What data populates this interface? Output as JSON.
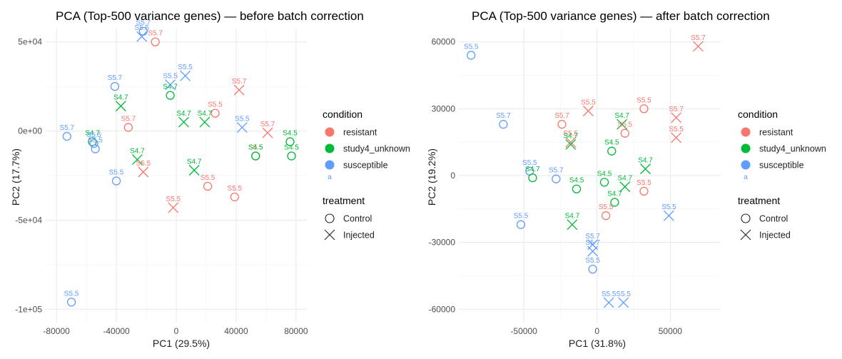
{
  "colors": {
    "resistant": "#F8766D",
    "study4_unknown": "#00BA38",
    "susceptible": "#619CFF"
  },
  "legend": {
    "condition_title": "condition",
    "condition_items": [
      {
        "key": "resistant",
        "label": "resistant"
      },
      {
        "key": "study4_unknown",
        "label": "study4_unknown"
      },
      {
        "key": "susceptible",
        "label": "susceptible"
      }
    ],
    "key_glyph": "a",
    "treatment_title": "treatment",
    "treatment_items": [
      {
        "shape": "circle",
        "label": "Control"
      },
      {
        "shape": "cross",
        "label": "Injected"
      }
    ]
  },
  "chart_data": [
    {
      "type": "scatter",
      "title": "PCA (Top-500 variance genes) — before batch correction",
      "xlabel": "PC1 (29.5%)",
      "ylabel": "PC2 (17.7%)",
      "xlim": [
        -80000,
        80000
      ],
      "ylim": [
        -100000,
        50000
      ],
      "xticks": [
        -80000,
        -40000,
        0,
        40000,
        80000
      ],
      "xtick_labels": [
        "-80000",
        "-40000",
        "0",
        "40000",
        "80000"
      ],
      "yticks": [
        50000,
        0,
        -50000,
        -100000
      ],
      "ytick_labels": [
        "5e+04",
        "0e+00",
        "-5e+04",
        "-1e+05"
      ],
      "grid": true,
      "points": [
        {
          "x": -22000,
          "y": 56000,
          "cond": "susceptible",
          "treat": "Control",
          "label": "S5.7"
        },
        {
          "x": -23000,
          "y": 53000,
          "cond": "susceptible",
          "treat": "Injected",
          "label": "S5.5"
        },
        {
          "x": -14000,
          "y": 50000,
          "cond": "resistant",
          "treat": "Control",
          "label": "S5.7"
        },
        {
          "x": -41000,
          "y": 25000,
          "cond": "susceptible",
          "treat": "Control",
          "label": "S5.7"
        },
        {
          "x": 6000,
          "y": 31000,
          "cond": "susceptible",
          "treat": "Injected",
          "label": "S5.5"
        },
        {
          "x": -4000,
          "y": 26000,
          "cond": "susceptible",
          "treat": "Injected",
          "label": "S5.5"
        },
        {
          "x": -4000,
          "y": 20000,
          "cond": "study4_unknown",
          "treat": "Control",
          "label": "S4.7"
        },
        {
          "x": 42000,
          "y": 23000,
          "cond": "resistant",
          "treat": "Injected",
          "label": "S5.7"
        },
        {
          "x": -37000,
          "y": 14000,
          "cond": "study4_unknown",
          "treat": "Injected",
          "label": "S4.7"
        },
        {
          "x": 26000,
          "y": 10000,
          "cond": "resistant",
          "treat": "Control",
          "label": "S5.5"
        },
        {
          "x": 5000,
          "y": 5000,
          "cond": "study4_unknown",
          "treat": "Injected",
          "label": "S4.7"
        },
        {
          "x": 19000,
          "y": 5000,
          "cond": "study4_unknown",
          "treat": "Injected",
          "label": "S4.7"
        },
        {
          "x": -32000,
          "y": 2000,
          "cond": "resistant",
          "treat": "Control",
          "label": "S5.7"
        },
        {
          "x": 44000,
          "y": 2000,
          "cond": "susceptible",
          "treat": "Injected",
          "label": "S5.5"
        },
        {
          "x": 61000,
          "y": -1000,
          "cond": "resistant",
          "treat": "Injected",
          "label": "S5.7"
        },
        {
          "x": -73000,
          "y": -3000,
          "cond": "susceptible",
          "treat": "Control",
          "label": "S5.7"
        },
        {
          "x": -56000,
          "y": -6000,
          "cond": "study4_unknown",
          "treat": "Control",
          "label": "S4.7"
        },
        {
          "x": -55000,
          "y": -7000,
          "cond": "susceptible",
          "treat": "Control",
          "label": "S5.5"
        },
        {
          "x": -54000,
          "y": -10000,
          "cond": "susceptible",
          "treat": "Control",
          "label": "S5.5"
        },
        {
          "x": 76000,
          "y": -6000,
          "cond": "study4_unknown",
          "treat": "Control",
          "label": "S4.5"
        },
        {
          "x": 53000,
          "y": -14000,
          "cond": "resistant",
          "treat": "Control",
          "label": "S5.5"
        },
        {
          "x": 53000,
          "y": -14000,
          "cond": "study4_unknown",
          "treat": "Control",
          "label": "S4.5"
        },
        {
          "x": 77000,
          "y": -14000,
          "cond": "study4_unknown",
          "treat": "Control",
          "label": "S4.5"
        },
        {
          "x": -26000,
          "y": -16000,
          "cond": "study4_unknown",
          "treat": "Injected",
          "label": "S4.7"
        },
        {
          "x": -22000,
          "y": -23000,
          "cond": "resistant",
          "treat": "Injected",
          "label": "S5.5"
        },
        {
          "x": 12000,
          "y": -22000,
          "cond": "study4_unknown",
          "treat": "Injected",
          "label": "S4.7"
        },
        {
          "x": -40000,
          "y": -28000,
          "cond": "susceptible",
          "treat": "Control",
          "label": "S5.5"
        },
        {
          "x": 21000,
          "y": -31000,
          "cond": "resistant",
          "treat": "Control",
          "label": "S5.5"
        },
        {
          "x": 39000,
          "y": -37000,
          "cond": "resistant",
          "treat": "Control",
          "label": "S5.5"
        },
        {
          "x": -2000,
          "y": -43000,
          "cond": "resistant",
          "treat": "Injected",
          "label": "S5.5"
        },
        {
          "x": -70000,
          "y": -96000,
          "cond": "susceptible",
          "treat": "Control",
          "label": "S5.5"
        }
      ]
    },
    {
      "type": "scatter",
      "title": "PCA (Top-500 variance genes) — after batch correction",
      "xlabel": "PC1 (31.8%)",
      "ylabel": "PC2 (19.2%)",
      "xlim": [
        -87000,
        77000
      ],
      "ylim": [
        -60000,
        60000
      ],
      "xticks": [
        -50000,
        0,
        50000
      ],
      "xtick_labels": [
        "-50000",
        "0",
        "50000"
      ],
      "yticks": [
        60000,
        30000,
        0,
        -30000,
        -60000
      ],
      "ytick_labels": [
        "60000",
        "30000",
        "0",
        "-30000",
        "-60000"
      ],
      "grid": true,
      "points": [
        {
          "x": 69000,
          "y": 58000,
          "cond": "resistant",
          "treat": "Injected",
          "label": "S5.7"
        },
        {
          "x": -86000,
          "y": 54000,
          "cond": "susceptible",
          "treat": "Control",
          "label": "S5.5"
        },
        {
          "x": -6000,
          "y": 29000,
          "cond": "resistant",
          "treat": "Injected",
          "label": "S5.5"
        },
        {
          "x": 32000,
          "y": 30000,
          "cond": "resistant",
          "treat": "Control",
          "label": "S5.5"
        },
        {
          "x": -24000,
          "y": 23000,
          "cond": "resistant",
          "treat": "Control",
          "label": "S5.7"
        },
        {
          "x": 54000,
          "y": 26000,
          "cond": "resistant",
          "treat": "Injected",
          "label": "S5.7"
        },
        {
          "x": -64000,
          "y": 23000,
          "cond": "susceptible",
          "treat": "Control",
          "label": "S5.7"
        },
        {
          "x": 17000,
          "y": 23000,
          "cond": "study4_unknown",
          "treat": "Injected",
          "label": "S4.7"
        },
        {
          "x": 19000,
          "y": 19000,
          "cond": "resistant",
          "treat": "Control",
          "label": "S5.5"
        },
        {
          "x": 54000,
          "y": 17000,
          "cond": "resistant",
          "treat": "Injected",
          "label": "S5.5"
        },
        {
          "x": -18000,
          "y": 15000,
          "cond": "resistant",
          "treat": "Injected",
          "label": "S5.5"
        },
        {
          "x": -18000,
          "y": 14000,
          "cond": "study4_unknown",
          "treat": "Injected",
          "label": "S4.7"
        },
        {
          "x": 10000,
          "y": 11000,
          "cond": "study4_unknown",
          "treat": "Control",
          "label": "S4.5"
        },
        {
          "x": 33000,
          "y": 3000,
          "cond": "study4_unknown",
          "treat": "Injected",
          "label": "S4.7"
        },
        {
          "x": -46000,
          "y": 2000,
          "cond": "susceptible",
          "treat": "Control",
          "label": "S5.5"
        },
        {
          "x": -44000,
          "y": -1000,
          "cond": "study4_unknown",
          "treat": "Control",
          "label": "S4.7"
        },
        {
          "x": -28000,
          "y": -1500,
          "cond": "susceptible",
          "treat": "Control",
          "label": "S5.7"
        },
        {
          "x": -14000,
          "y": -6000,
          "cond": "study4_unknown",
          "treat": "Control",
          "label": "S4.5"
        },
        {
          "x": 5000,
          "y": -3000,
          "cond": "study4_unknown",
          "treat": "Control",
          "label": "S4.5"
        },
        {
          "x": 19000,
          "y": -5000,
          "cond": "study4_unknown",
          "treat": "Injected",
          "label": "S4.7"
        },
        {
          "x": 32000,
          "y": -7000,
          "cond": "resistant",
          "treat": "Control",
          "label": "S5.5"
        },
        {
          "x": 12000,
          "y": -12000,
          "cond": "study4_unknown",
          "treat": "Control",
          "label": "S4.7"
        },
        {
          "x": 6000,
          "y": -18000,
          "cond": "resistant",
          "treat": "Control",
          "label": "S5.5"
        },
        {
          "x": -17000,
          "y": -22000,
          "cond": "study4_unknown",
          "treat": "Injected",
          "label": "S4.7"
        },
        {
          "x": -52000,
          "y": -22000,
          "cond": "susceptible",
          "treat": "Control",
          "label": "S5.5"
        },
        {
          "x": 49000,
          "y": -18000,
          "cond": "susceptible",
          "treat": "Injected",
          "label": "S5.5"
        },
        {
          "x": -3000,
          "y": -31000,
          "cond": "susceptible",
          "treat": "Injected",
          "label": "S5.7"
        },
        {
          "x": -3000,
          "y": -34000,
          "cond": "susceptible",
          "treat": "Injected",
          "label": "S5.7"
        },
        {
          "x": -3000,
          "y": -42000,
          "cond": "susceptible",
          "treat": "Control",
          "label": "S5.5"
        },
        {
          "x": 8000,
          "y": -57000,
          "cond": "susceptible",
          "treat": "Injected",
          "label": "S5.5"
        },
        {
          "x": 18000,
          "y": -57000,
          "cond": "susceptible",
          "treat": "Injected",
          "label": "S5.5"
        }
      ]
    }
  ]
}
